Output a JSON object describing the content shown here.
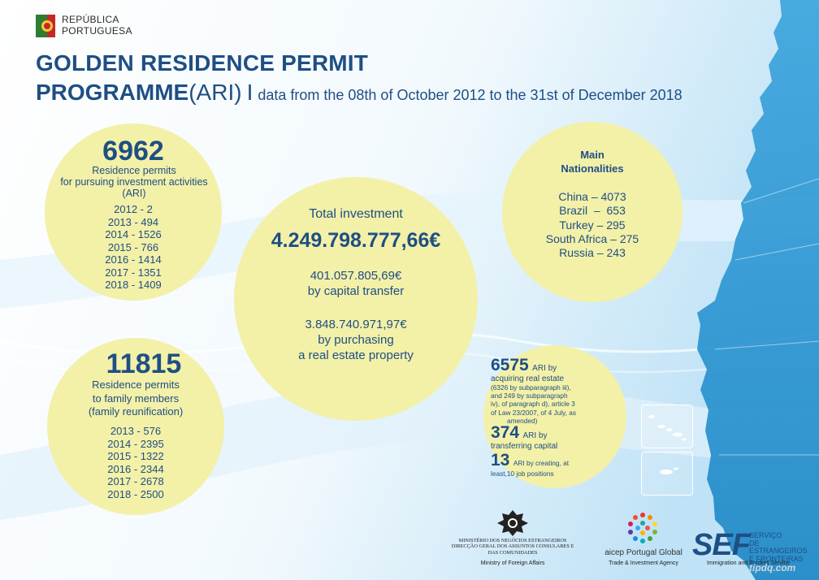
{
  "header": {
    "logo_text": [
      "REPÚBLICA",
      "PORTUGUESA"
    ],
    "title_line1": "GOLDEN RESIDENCE PERMIT",
    "title_line2_bold": "PROGRAMME",
    "title_line2_ari": "(ARI)",
    "title_separator": "I",
    "subtitle": "data from the 08th of October 2012 to the 31st of December 2018"
  },
  "investment_permits": {
    "total": "6962",
    "desc_lines": [
      "Residence permits",
      "for pursuing investment activities",
      "(ARI)"
    ],
    "by_year": [
      "2012 - 2",
      "2013 - 494",
      "2014 - 1526",
      "2015 - 766",
      "2016 - 1414",
      "2017 - 1351",
      "2018 - 1409"
    ]
  },
  "total_investment": {
    "label": "Total investment",
    "amount": "4.249.798.777,66€",
    "capital_transfer_amount": "401.057.805,69€",
    "capital_transfer_label": "by capital transfer",
    "real_estate_amount": "3.848.740.971,97€",
    "real_estate_label_lines": [
      "by purchasing",
      "a real estate property"
    ]
  },
  "nationalities": {
    "heading_lines": [
      "Main",
      "Nationalities"
    ],
    "items": [
      "China – 4073",
      "Brazil  –  653",
      "Turkey – 295",
      "South Africa – 275",
      "Russia – 243"
    ]
  },
  "family_permits": {
    "total": "11815",
    "desc_lines": [
      "Residence permits",
      "to family members",
      "(family reunification)"
    ],
    "by_year": [
      "2013 - 576",
      "2014 - 2395",
      "2015 - 1322",
      "2016 - 2344",
      "2017 - 2678",
      "2018 - 2500"
    ]
  },
  "ari_types": {
    "real_estate_num": "6575",
    "real_estate_label_lines": [
      "ARI by",
      "acquiring real estate"
    ],
    "real_estate_detail_lines": [
      "(6326 by subparagraph iii),",
      "and 249 by subparagraph",
      "iv), of paragraph d), article 3",
      "of Law 23/2007, of 4 July, as",
      "amended)"
    ],
    "capital_num": "374",
    "capital_label_lines": [
      "ARI by",
      "transferring capital"
    ],
    "jobs_num": "13",
    "jobs_label_lines": [
      "ARI by creating, at",
      "least,10 job positions"
    ]
  },
  "footer": {
    "mne_name_lines": [
      "MINISTÉRIO DOS NEGÓCIOS ESTRANGEIROS",
      "DIRECÇÃO GERAL DOS ASSUNTOS CONSULARES E",
      "DAS COMUNIDADES"
    ],
    "mne_english": "Ministry of Foreign Affairs",
    "aicep_name": "aicep Portugal Global",
    "aicep_english": "Trade & Investment Agency",
    "sef_logo": "SEF",
    "sef_name_lines": [
      "SERVIÇO",
      "DE ESTRANGEIROS",
      "E FRONTEIRAS"
    ],
    "sef_english": "Immigration and Borders Service",
    "watermark": "tipdq.com"
  },
  "colors": {
    "title_blue": "#1e4f84",
    "circle_yellow": "#f3f0a8",
    "map_blue": "#1b8fd0",
    "background_light_blue": "#d9eefa"
  }
}
